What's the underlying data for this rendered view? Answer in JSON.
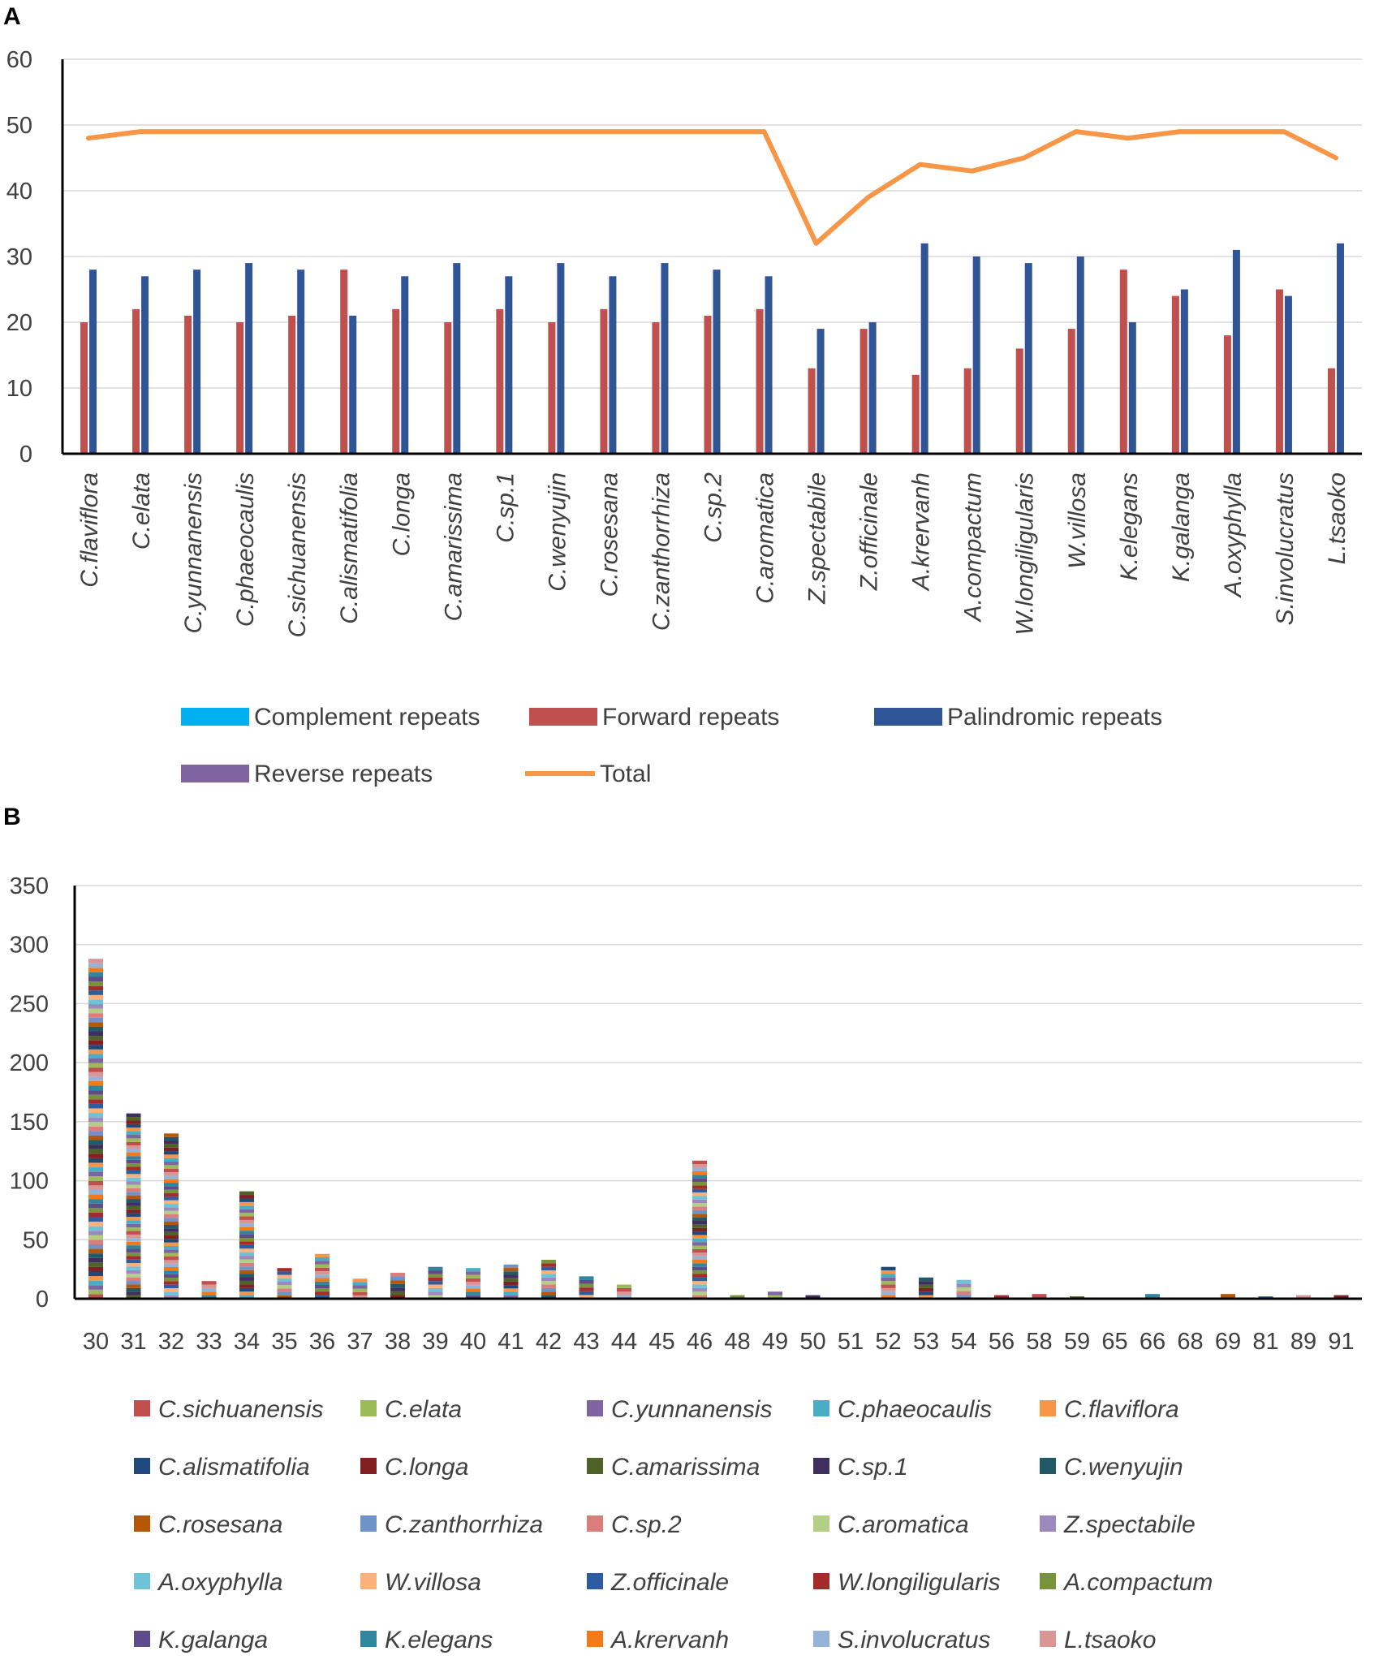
{
  "colors": {
    "complement": "#00B0F0",
    "forward": "#C0504D",
    "palindromic": "#2F5597",
    "reverse": "#8064A2",
    "total": "#F79646",
    "grid": "#D9D9D9",
    "axis": "#000000"
  },
  "chart_data": [
    {
      "panel": "A",
      "type": "bar",
      "title": "",
      "xlabel": "",
      "ylabel": "",
      "ylim": [
        0,
        60
      ],
      "yticks": [
        "0",
        "10",
        "20",
        "30",
        "40",
        "50",
        "60"
      ],
      "categories": [
        "C.flaviflora",
        "C.elata",
        "C.yunnanensis",
        "C.phaeocaulis",
        "C.sichuanensis",
        "C.alismatifolia",
        "C.longa",
        "C.amarissima",
        "C.sp.1",
        "C.wenyujin",
        "C.rosesana",
        "C.zanthorrhiza",
        "C.sp.2",
        "C.aromatica",
        "Z.spectabile",
        "Z.officinale",
        "A.krervanh",
        "A.compactum",
        "W.longiligularis",
        "W.villosa",
        "K.elegans",
        "K.galanga",
        "A.oxyphylla",
        "S.involucratus",
        "L.tsaoko"
      ],
      "series": [
        {
          "name": "Complement repeats",
          "type": "bar",
          "values": [
            0,
            0,
            0,
            0,
            0,
            0,
            0,
            0,
            0,
            0,
            0,
            0,
            0,
            0,
            0,
            0,
            0,
            0,
            0,
            0,
            0,
            0,
            0,
            0,
            0
          ]
        },
        {
          "name": "Forward repeats",
          "type": "bar",
          "values": [
            20,
            22,
            21,
            20,
            21,
            28,
            22,
            20,
            22,
            20,
            22,
            20,
            21,
            22,
            13,
            19,
            12,
            13,
            16,
            19,
            28,
            24,
            18,
            25,
            13
          ]
        },
        {
          "name": "Palindromic repeats",
          "type": "bar",
          "values": [
            28,
            27,
            28,
            29,
            28,
            21,
            27,
            29,
            27,
            29,
            27,
            29,
            28,
            27,
            19,
            20,
            32,
            30,
            29,
            30,
            20,
            25,
            31,
            24,
            32
          ]
        },
        {
          "name": "Reverse repeats",
          "type": "bar",
          "values": [
            0,
            0,
            0,
            0,
            0,
            0,
            0,
            0,
            0,
            0,
            0,
            0,
            0,
            0,
            0,
            0,
            0,
            0,
            0,
            0,
            0,
            0,
            0,
            0,
            0
          ]
        },
        {
          "name": "Total",
          "type": "line",
          "values": [
            48,
            49,
            49,
            49,
            49,
            49,
            49,
            49,
            49,
            49,
            49,
            49,
            49,
            49,
            32,
            39,
            44,
            43,
            45,
            49,
            48,
            49,
            49,
            49,
            45
          ]
        }
      ],
      "legend": {
        "placement": "bottom",
        "items": [
          "Complement repeats",
          "Forward repeats",
          "Palindromic repeats",
          "Reverse repeats",
          "Total"
        ]
      }
    },
    {
      "panel": "B",
      "type": "bar",
      "stacked": true,
      "title": "",
      "xlabel": "",
      "ylabel": "",
      "ylim": [
        0,
        350
      ],
      "yticks": [
        "0",
        "50",
        "100",
        "150",
        "200",
        "250",
        "300",
        "350"
      ],
      "categories": [
        "30",
        "31",
        "32",
        "33",
        "34",
        "35",
        "36",
        "37",
        "38",
        "39",
        "40",
        "41",
        "42",
        "43",
        "44",
        "45",
        "46",
        "48",
        "49",
        "50",
        "51",
        "52",
        "53",
        "54",
        "56",
        "58",
        "59",
        "65",
        "66",
        "68",
        "69",
        "81",
        "89",
        "91"
      ],
      "totals": [
        288,
        157,
        140,
        15,
        91,
        26,
        38,
        17,
        22,
        27,
        26,
        29,
        33,
        19,
        12,
        0,
        117,
        3,
        6,
        3,
        0,
        27,
        18,
        16,
        3,
        4,
        2,
        0,
        4,
        0,
        4,
        2,
        3,
        3
      ],
      "series_names": [
        "C.sichuanensis",
        "C.elata",
        "C.yunnanensis",
        "C.phaeocaulis",
        "C.flaviflora",
        "C.alismatifolia",
        "C.longa",
        "C.amarissima",
        "C.sp.1",
        "C.wenyujin",
        "C.rosesana",
        "C.zanthorrhiza",
        "C.sp.2",
        "C.aromatica",
        "Z.spectabile",
        "A.oxyphylla",
        "W.villosa",
        "Z.officinale",
        "W.longiligularis",
        "A.compactum",
        "K.galanga",
        "K.elegans",
        "A.krervanh",
        "S.involucratus",
        "L.tsaoko"
      ],
      "series_colors": [
        "#C0504D",
        "#9BBB59",
        "#8064A2",
        "#4BACC6",
        "#F79646",
        "#1F497D",
        "#7F1F1F",
        "#4F6228",
        "#3F2F5F",
        "#215967",
        "#B65708",
        "#6F93C8",
        "#DB7D7B",
        "#B3CF85",
        "#9E89BF",
        "#6FC3D9",
        "#FAB27A",
        "#2E5CA3",
        "#A52A2A",
        "#77933C",
        "#5F4B8B",
        "#31859C",
        "#F27A18",
        "#95B3D7",
        "#D99694"
      ],
      "legend": {
        "placement": "bottom"
      }
    }
  ]
}
